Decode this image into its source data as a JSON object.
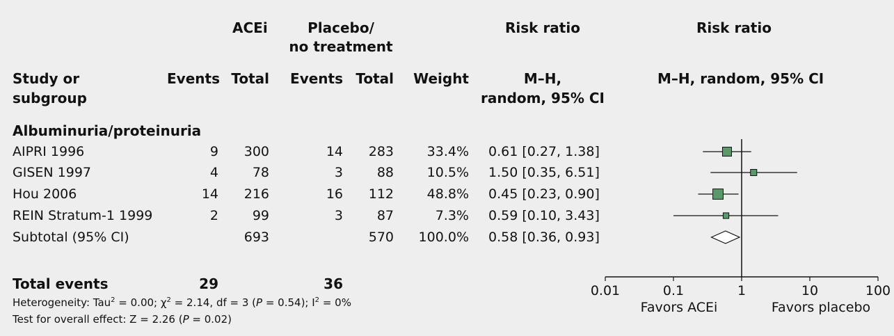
{
  "headers": {
    "group1": "ACEi",
    "group2_line1": "Placebo/",
    "group2_line2": "no treatment",
    "rr_top": "Risk ratio",
    "rr_plot_top": "Risk ratio",
    "study_line1": "Study or",
    "study_line2": "subgroup",
    "events1": "Events",
    "total1": "Total",
    "events2": "Events",
    "total2": "Total",
    "weight": "Weight",
    "rr_line1": "M–H,",
    "rr_line2": "random, 95% CI",
    "plot_sub": "M–H, random, 95% CI"
  },
  "subgroup_title": "Albuminuria/proteinuria",
  "studies": [
    {
      "name": "AIPRI 1996",
      "events1": "9",
      "total1": "300",
      "events2": "14",
      "total2": "283",
      "weight": "33.4%",
      "rr": "0.61 [0.27, 1.38]"
    },
    {
      "name": "GISEN 1997",
      "events1": "4",
      "total1": "78",
      "events2": "3",
      "total2": "88",
      "weight": "10.5%",
      "rr": "1.50 [0.35, 6.51]"
    },
    {
      "name": "Hou 2006",
      "events1": "14",
      "total1": "216",
      "events2": "16",
      "total2": "112",
      "weight": "48.8%",
      "rr": "0.45 [0.23, 0.90]"
    },
    {
      "name": "REIN Stratum-1 1999",
      "events1": "2",
      "total1": "99",
      "events2": "3",
      "total2": "87",
      "weight": "7.3%",
      "rr": "0.59 [0.10, 3.43]"
    }
  ],
  "subtotal": {
    "name": "Subtotal (95% CI)",
    "total1": "693",
    "total2": "570",
    "weight": "100.0%",
    "rr": "0.58 [0.36, 0.93]"
  },
  "totals": {
    "label": "Total events",
    "events1": "29",
    "events2": "36"
  },
  "footer": {
    "heterogeneity_a": "Heterogeneity: Tau",
    "heterogeneity_b": " = 0.00; χ",
    "heterogeneity_c": " = 2.14, df = 3 (",
    "heterogeneity_p": "P",
    "heterogeneity_d": " = 0.54); I",
    "heterogeneity_e": " = 0%",
    "sup2": "2",
    "overall_a": "Test for overall effect: Z = 2.26 (",
    "overall_p": "P",
    "overall_b": " = 0.02)"
  },
  "chart_data": {
    "type": "forest",
    "scale": "log",
    "xlim": [
      0.01,
      100
    ],
    "ticks": [
      {
        "value": 0.01,
        "label": "0.01"
      },
      {
        "value": 0.1,
        "label": "0.1"
      },
      {
        "value": 1,
        "label": "1"
      },
      {
        "value": 10,
        "label": "10"
      },
      {
        "value": 100,
        "label": "100"
      }
    ],
    "reference_line": 1,
    "favors_left": "Favors ACEi",
    "favors_right": "Favors placebo",
    "marker_color": "#5a9a6a",
    "points": [
      {
        "study": "AIPRI 1996",
        "rr": 0.61,
        "lo": 0.27,
        "hi": 1.38,
        "weight": 33.4
      },
      {
        "study": "GISEN 1997",
        "rr": 1.5,
        "lo": 0.35,
        "hi": 6.51,
        "weight": 10.5
      },
      {
        "study": "Hou 2006",
        "rr": 0.45,
        "lo": 0.23,
        "hi": 0.9,
        "weight": 48.8
      },
      {
        "study": "REIN Stratum-1 1999",
        "rr": 0.59,
        "lo": 0.1,
        "hi": 3.43,
        "weight": 7.3
      }
    ],
    "summary": {
      "rr": 0.58,
      "lo": 0.36,
      "hi": 0.93
    }
  }
}
